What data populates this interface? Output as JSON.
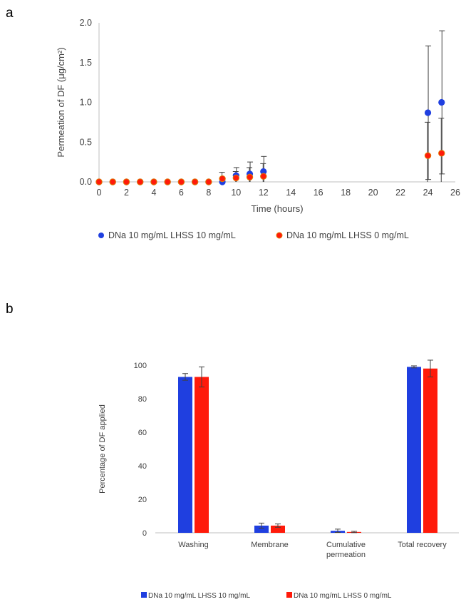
{
  "panel_a_label": "a",
  "panel_b_label": "b",
  "colors": {
    "series1": "#1f3fe0",
    "series2": "#ff1a0a",
    "series2_edge": "#e07a00",
    "axis": "#bfbfbf",
    "error": "#404040"
  },
  "chart_data": [
    {
      "type": "scatter",
      "title": "",
      "xlabel": "Time (hours)",
      "ylabel": "Permeation of DF (μg/cm²)",
      "xlim": [
        0,
        26
      ],
      "ylim": [
        0,
        2.0
      ],
      "x_ticks": [
        "0",
        "2",
        "4",
        "6",
        "8",
        "10",
        "12",
        "14",
        "16",
        "18",
        "20",
        "22",
        "24",
        "26"
      ],
      "y_ticks": [
        "0.0",
        "0.5",
        "1.0",
        "1.5",
        "2.0"
      ],
      "grid": false,
      "legend_position": "bottom",
      "series": [
        {
          "name": "DNa 10 mg/mL LHSS 10 mg/mL",
          "x": [
            0,
            1,
            2,
            3,
            4,
            5,
            6,
            7,
            8,
            9,
            10,
            11,
            12,
            24,
            25
          ],
          "y": [
            0,
            0,
            0,
            0,
            0,
            0,
            0,
            0,
            0,
            0,
            0.08,
            0.1,
            0.13,
            0.87,
            1.0
          ],
          "error": [
            0,
            0,
            0,
            0,
            0,
            0,
            0,
            0,
            0,
            0,
            0.1,
            0.15,
            0.19,
            0.84,
            0.9
          ]
        },
        {
          "name": "DNa 10 mg/mL LHSS 0 mg/mL",
          "x": [
            0,
            1,
            2,
            3,
            4,
            5,
            6,
            7,
            8,
            9,
            10,
            11,
            12,
            24,
            25
          ],
          "y": [
            0,
            0,
            0,
            0,
            0,
            0,
            0,
            0,
            0,
            0.04,
            0.05,
            0.06,
            0.07,
            0.33,
            0.36
          ],
          "error": [
            0,
            0,
            0,
            0,
            0,
            0,
            0,
            0,
            0,
            0.08,
            0.08,
            0.12,
            0.16,
            0.42,
            0.44
          ]
        }
      ]
    },
    {
      "type": "bar",
      "title": "",
      "xlabel": "",
      "ylabel": "Percentage of DF applied",
      "ylim": [
        0,
        100
      ],
      "y_ticks": [
        "0",
        "20",
        "40",
        "60",
        "80",
        "100"
      ],
      "categories": [
        "Washing",
        "Membrane",
        "Cumulative|permeation",
        "Total recovery"
      ],
      "grid": false,
      "legend_position": "bottom",
      "series": [
        {
          "name": "DNa 10 mg/mL LHSS 10 mg/mL",
          "values": [
            93,
            4.3,
            1.2,
            99
          ],
          "error": [
            2,
            1.5,
            1,
            0.6
          ]
        },
        {
          "name": "DNa 10 mg/mL LHSS 0 mg/mL",
          "values": [
            93,
            4.3,
            0.5,
            98
          ],
          "error": [
            6,
            1,
            0.4,
            5
          ]
        }
      ]
    }
  ]
}
